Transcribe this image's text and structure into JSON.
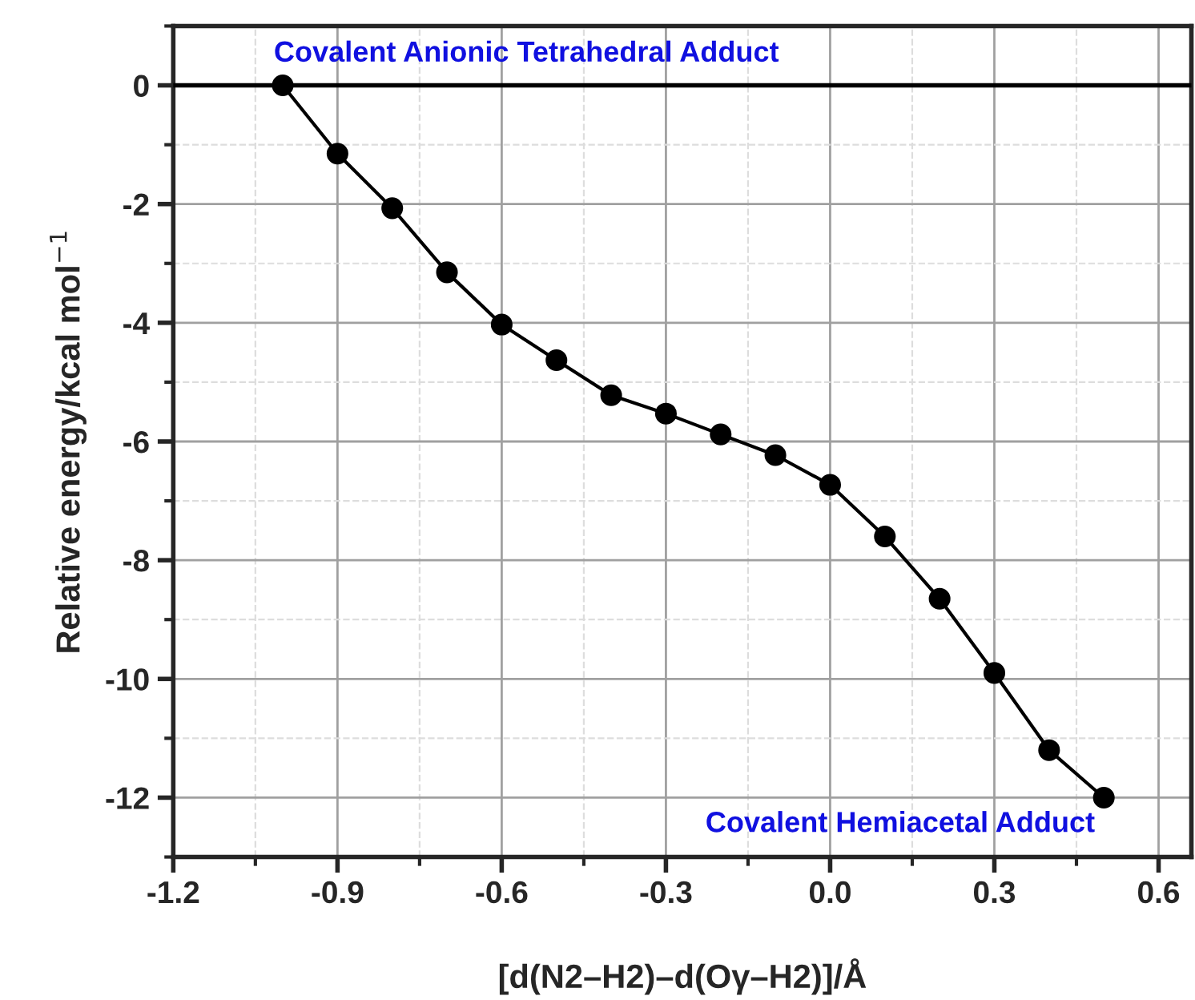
{
  "chart_data": {
    "type": "line",
    "xlabel": "[d(N2–H2)–d(Oγ–H2)]/Å",
    "ylabel": "Relative energy/kcal mol$^{−1}$",
    "x": [
      -1.0,
      -0.9,
      -0.8,
      -0.7,
      -0.6,
      -0.5,
      -0.4,
      -0.3,
      -0.2,
      -0.1,
      0.0,
      0.1,
      0.2,
      0.3,
      0.4,
      0.5
    ],
    "series": [
      {
        "color": "#000000",
        "values": [
          0,
          -1.15,
          -2.07,
          -3.15,
          -4.03,
          -4.63,
          -5.22,
          -5.53,
          -5.88,
          -6.23,
          -6.73,
          -7.6,
          -8.65,
          -9.9,
          -11.2,
          -12.0
        ]
      }
    ],
    "xlim": [
      -1.2,
      0.66
    ],
    "xticks": [
      {
        "value": -1.2,
        "label": "-1.2"
      },
      {
        "value": -0.9,
        "label": "-0.9"
      },
      {
        "value": -0.6,
        "label": "-0.6"
      },
      {
        "value": -0.3,
        "label": "-0.3"
      },
      {
        "value": 0.0,
        "label": "0.0"
      },
      {
        "value": 0.3,
        "label": "0.3"
      },
      {
        "value": 0.6,
        "label": "0.6"
      }
    ],
    "ylim": [
      -13,
      1
    ],
    "yticks": [
      {
        "value": -12,
        "label": "-12"
      },
      {
        "value": -10,
        "label": "-10"
      },
      {
        "value": -8,
        "label": "-8"
      },
      {
        "value": -6,
        "label": "-6"
      },
      {
        "value": -4,
        "label": "-4"
      },
      {
        "value": -2,
        "label": "-2"
      },
      0
    ],
    "ref_lines": [
      {
        "axis": "y",
        "value": 0,
        "color": "#000000"
      }
    ],
    "annotations": [
      {
        "text": "Covalent Anionic Tetrahedral Adduct",
        "x": -1.0,
        "y": 0
      },
      {
        "text": "Covalent Hemiacetal Adduct",
        "x": 0.5,
        "y": -12.0
      }
    ],
    "grid": true,
    "marker": "circle",
    "line_style": "solid"
  }
}
